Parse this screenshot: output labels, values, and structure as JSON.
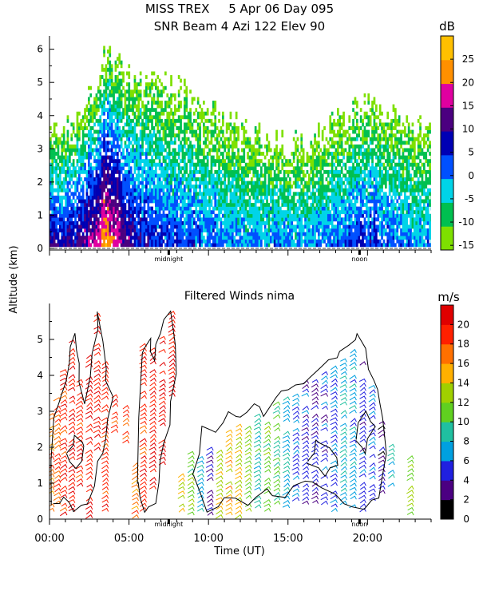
{
  "header": {
    "line1": "MISS TREX     5 Apr 06 Day 095",
    "line2": "SNR Beam 4 Azi 122 Elev 90"
  },
  "chart_data": [
    {
      "type": "heatmap",
      "title": "SNR Beam 4 Azi 122 Elev 90",
      "ylabel": "Altitude (km)",
      "ylim": [
        0,
        6.4
      ],
      "yticks": [
        "0",
        "1",
        "2",
        "3",
        "4",
        "5",
        "6"
      ],
      "xlim_hours": [
        0,
        24
      ],
      "x_markers": [
        {
          "hour": 7.5,
          "label": "midnight"
        },
        {
          "hour": 19.5,
          "label": "noon"
        }
      ],
      "colorbar": {
        "unit": "dB",
        "range": [
          -16,
          30
        ],
        "tick_labels": [
          "25",
          "20",
          "15",
          "10",
          "5",
          "0",
          "-5",
          "-10",
          "-15"
        ],
        "colors": [
          "#7ee000",
          "#00c050",
          "#00d4e8",
          "#0050ff",
          "#0000b4",
          "#4b0080",
          "#e000a0",
          "#ff9000",
          "#ffc000"
        ]
      },
      "profile_summary": [
        {
          "hour": 1.5,
          "top_km": 3.6,
          "max_dB": 10
        },
        {
          "hour": 2.5,
          "top_km": 4.5,
          "max_dB": 15
        },
        {
          "hour": 3.5,
          "top_km": 5.8,
          "max_dB": 25
        },
        {
          "hour": 5,
          "top_km": 5.2,
          "max_dB": 10
        },
        {
          "hour": 7,
          "top_km": 5.0,
          "max_dB": 5
        },
        {
          "hour": 9,
          "top_km": 4.5,
          "max_dB": 5
        },
        {
          "hour": 12,
          "top_km": 3.5,
          "max_dB": 0
        },
        {
          "hour": 16,
          "top_km": 3.0,
          "max_dB": 0
        },
        {
          "hour": 20,
          "top_km": 4.5,
          "max_dB": 5
        },
        {
          "hour": 23,
          "top_km": 3.5,
          "max_dB": 0
        }
      ]
    },
    {
      "type": "scatter",
      "title": "Filtered Winds nima",
      "xlabel": "Time (UT)",
      "ylabel": "Altitude (km)",
      "ylim": [
        0,
        6
      ],
      "yticks": [
        "0",
        "1",
        "2",
        "3",
        "4",
        "5"
      ],
      "xlim_hours": [
        0,
        24
      ],
      "xticks": [
        {
          "hour": 0,
          "label": "00:00"
        },
        {
          "hour": 5,
          "label": "05:00"
        },
        {
          "hour": 10,
          "label": "10:00"
        },
        {
          "hour": 15,
          "label": "15:00"
        },
        {
          "hour": 20,
          "label": "20:00"
        }
      ],
      "x_markers": [
        {
          "hour": 7.5,
          "label": "midnight"
        },
        {
          "hour": 19.5,
          "label": "noon"
        }
      ],
      "colorbar": {
        "unit": "m/s",
        "range": [
          0,
          22
        ],
        "tick_labels": [
          "20",
          "18",
          "16",
          "14",
          "12",
          "10",
          "8",
          "6",
          "4",
          "2",
          "0"
        ],
        "colors": [
          "#000000",
          "#4b0082",
          "#2020e0",
          "#00a0e0",
          "#20c0a0",
          "#60d020",
          "#a0d000",
          "#ffb000",
          "#ff7000",
          "#ff2000",
          "#e00000"
        ]
      },
      "wind_columns": [
        {
          "hour": 0.2,
          "from_km": 0.3,
          "to_km": 3.0,
          "speed": 17
        },
        {
          "hour": 0.6,
          "from_km": 0.5,
          "to_km": 3.5,
          "speed": 18
        },
        {
          "hour": 1.0,
          "from_km": 0.2,
          "to_km": 4.2,
          "speed": 19
        },
        {
          "hour": 1.5,
          "from_km": 0.3,
          "to_km": 5.0,
          "speed": 20
        },
        {
          "hour": 2.0,
          "from_km": 1.0,
          "to_km": 4.0,
          "speed": 19
        },
        {
          "hour": 2.6,
          "from_km": 0.0,
          "to_km": 4.6,
          "speed": 20
        },
        {
          "hour": 3.1,
          "from_km": 2.0,
          "to_km": 5.8,
          "speed": 20
        },
        {
          "hour": 3.6,
          "from_km": 0.3,
          "to_km": 4.4,
          "speed": 19
        },
        {
          "hour": 4.2,
          "from_km": 2.5,
          "to_km": 3.5,
          "speed": 19
        },
        {
          "hour": 4.9,
          "from_km": 2.2,
          "to_km": 3.2,
          "speed": 18
        },
        {
          "hour": 5.5,
          "from_km": 0.0,
          "to_km": 1.8,
          "speed": 17
        },
        {
          "hour": 6.0,
          "from_km": 0.2,
          "to_km": 5.0,
          "speed": 19
        },
        {
          "hour": 6.6,
          "from_km": 0.8,
          "to_km": 4.8,
          "speed": 20
        },
        {
          "hour": 7.2,
          "from_km": 1.6,
          "to_km": 5.2,
          "speed": 20
        },
        {
          "hour": 7.8,
          "from_km": 3.5,
          "to_km": 5.8,
          "speed": 20
        },
        {
          "hour": 8.4,
          "from_km": 0.3,
          "to_km": 1.5,
          "speed": 14
        },
        {
          "hour": 9.0,
          "from_km": 0.2,
          "to_km": 2.0,
          "speed": 11
        },
        {
          "hour": 9.6,
          "from_km": 0.3,
          "to_km": 1.8,
          "speed": 7
        },
        {
          "hour": 10.2,
          "from_km": 0.2,
          "to_km": 2.2,
          "speed": 4
        },
        {
          "hour": 10.8,
          "from_km": 0.0,
          "to_km": 2.0,
          "speed": 13
        },
        {
          "hour": 11.4,
          "from_km": 0.2,
          "to_km": 2.5,
          "speed": 15
        },
        {
          "hour": 12.0,
          "from_km": 0.0,
          "to_km": 2.8,
          "speed": 14
        },
        {
          "hour": 12.6,
          "from_km": 0.3,
          "to_km": 2.6,
          "speed": 12
        },
        {
          "hour": 13.2,
          "from_km": 0.4,
          "to_km": 3.0,
          "speed": 9
        },
        {
          "hour": 13.8,
          "from_km": 0.3,
          "to_km": 2.8,
          "speed": 11
        },
        {
          "hour": 14.4,
          "from_km": 0.5,
          "to_km": 3.3,
          "speed": 10
        },
        {
          "hour": 15.0,
          "from_km": 0.4,
          "to_km": 3.6,
          "speed": 8
        },
        {
          "hour": 15.6,
          "from_km": 0.6,
          "to_km": 3.5,
          "speed": 6
        },
        {
          "hour": 16.2,
          "from_km": 0.5,
          "to_km": 3.9,
          "speed": 5
        },
        {
          "hour": 16.8,
          "from_km": 0.4,
          "to_km": 4.0,
          "speed": 4
        },
        {
          "hour": 17.4,
          "from_km": 0.5,
          "to_km": 4.2,
          "speed": 5
        },
        {
          "hour": 18.0,
          "from_km": 0.3,
          "to_km": 4.4,
          "speed": 6
        },
        {
          "hour": 18.6,
          "from_km": 0.5,
          "to_km": 4.6,
          "speed": 8
        },
        {
          "hour": 19.2,
          "from_km": 0.4,
          "to_km": 4.8,
          "speed": 7
        },
        {
          "hour": 19.8,
          "from_km": 0.3,
          "to_km": 4.5,
          "speed": 5
        },
        {
          "hour": 20.4,
          "from_km": 0.6,
          "to_km": 3.8,
          "speed": 6
        },
        {
          "hour": 21.0,
          "from_km": 0.8,
          "to_km": 2.8,
          "speed": 3
        },
        {
          "hour": 21.6,
          "from_km": 1.0,
          "to_km": 2.2,
          "speed": 8
        },
        {
          "hour": 22.8,
          "from_km": 0.2,
          "to_km": 1.8,
          "speed": 12
        }
      ]
    }
  ]
}
